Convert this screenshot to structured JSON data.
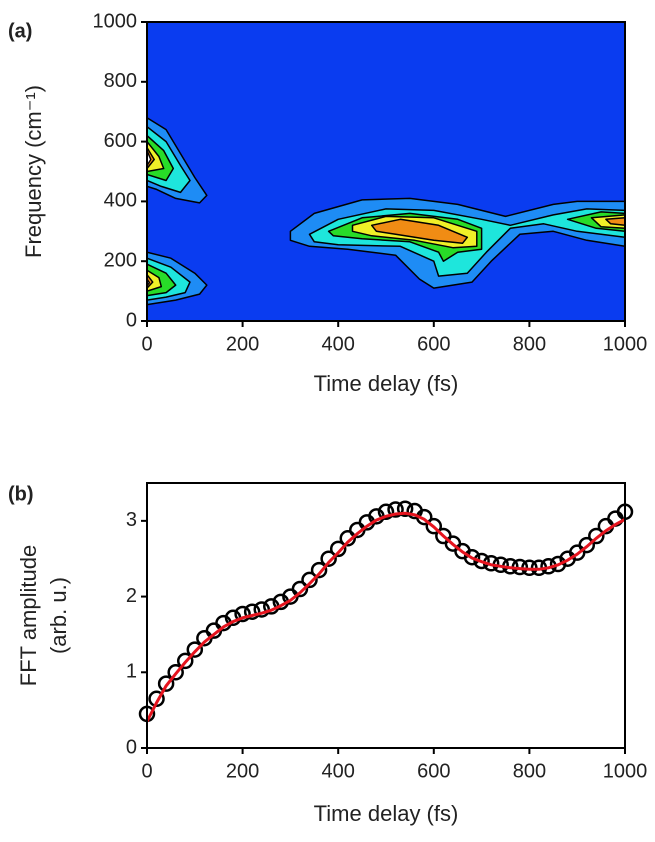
{
  "chart_data": [
    {
      "type": "contour",
      "panel_label": "(a)",
      "xlabel": "Time delay (fs)",
      "ylabel": "Frequency (cm⁻¹)",
      "xlim": [
        0,
        1000
      ],
      "ylim": [
        0,
        1000
      ],
      "xticks": [
        0,
        200,
        400,
        600,
        800,
        1000
      ],
      "yticks": [
        0,
        200,
        400,
        600,
        800,
        1000
      ],
      "background": "#0a3cf0",
      "levels": [
        {
          "color": "#1e8cf5",
          "regions": [
            {
              "x": [
                0,
                40,
                70,
                100,
                125,
                110,
                60,
                20,
                0
              ],
              "y": [
                680,
                640,
                560,
                480,
                420,
                395,
                410,
                440,
                450
              ]
            },
            {
              "x": [
                0,
                50,
                100,
                125,
                110,
                60,
                0
              ],
              "y": [
                230,
                210,
                160,
                120,
                90,
                70,
                55
              ]
            },
            {
              "x": [
                300,
                350,
                450,
                550,
                650,
                750,
                850,
                900,
                1000,
                1000,
                920,
                850,
                780,
                720,
                680,
                600,
                570,
                520,
                420,
                340,
                300
              ],
              "y": [
                300,
                360,
                405,
                410,
                390,
                350,
                390,
                400,
                400,
                250,
                270,
                300,
                290,
                200,
                130,
                110,
                140,
                220,
                240,
                250,
                270
              ]
            }
          ]
        },
        {
          "color": "#1ee6dc",
          "regions": [
            {
              "x": [
                0,
                40,
                70,
                90,
                70,
                30,
                0
              ],
              "y": [
                650,
                600,
                520,
                470,
                430,
                450,
                470
              ]
            },
            {
              "x": [
                0,
                50,
                90,
                80,
                40,
                0
              ],
              "y": [
                210,
                180,
                130,
                95,
                80,
                70
              ]
            },
            {
              "x": [
                340,
                400,
                500,
                600,
                700,
                760,
                850,
                920,
                1000,
                1000,
                900,
                830,
                760,
                710,
                670,
                610,
                600,
                530,
                400,
                350
              ],
              "y": [
                290,
                340,
                375,
                370,
                340,
                320,
                355,
                375,
                370,
                280,
                300,
                325,
                310,
                230,
                160,
                150,
                200,
                250,
                255,
                265
              ]
            }
          ]
        },
        {
          "color": "#28dc28",
          "regions": [
            {
              "x": [
                0,
                35,
                55,
                40,
                0
              ],
              "y": [
                620,
                570,
                510,
                470,
                490
              ]
            },
            {
              "x": [
                0,
                40,
                60,
                40,
                0
              ],
              "y": [
                190,
                160,
                120,
                95,
                85
              ]
            },
            {
              "x": [
                380,
                450,
                550,
                650,
                700,
                700,
                650,
                620,
                610,
                550,
                450,
                390
              ],
              "y": [
                300,
                345,
                360,
                340,
                310,
                240,
                230,
                200,
                230,
                265,
                275,
                285
              ]
            },
            {
              "x": [
                880,
                950,
                1000,
                1000,
                940
              ],
              "y": [
                340,
                365,
                360,
                300,
                310
              ]
            }
          ]
        },
        {
          "color": "#f0f028",
          "regions": [
            {
              "x": [
                0,
                25,
                35,
                0
              ],
              "y": [
                600,
                550,
                510,
                500
              ]
            },
            {
              "x": [
                0,
                25,
                30,
                0
              ],
              "y": [
                170,
                145,
                115,
                100
              ]
            },
            {
              "x": [
                430,
                500,
                600,
                690,
                690,
                640,
                560,
                470,
                430
              ],
              "y": [
                320,
                350,
                345,
                300,
                250,
                245,
                270,
                285,
                300
              ]
            },
            {
              "x": [
                930,
                1000,
                1000,
                950
              ],
              "y": [
                345,
                355,
                310,
                315
              ]
            }
          ]
        },
        {
          "color": "#f08c14",
          "regions": [
            {
              "x": [
                0,
                15,
                0
              ],
              "y": [
                580,
                540,
                510
              ]
            },
            {
              "x": [
                0,
                12,
                0
              ],
              "y": [
                155,
                130,
                110
              ]
            },
            {
              "x": [
                470,
                530,
                610,
                670,
                660,
                600,
                520,
                480
              ],
              "y": [
                320,
                340,
                320,
                280,
                260,
                270,
                290,
                300
              ]
            },
            {
              "x": [
                960,
                1000,
                1000,
                970
              ],
              "y": [
                340,
                345,
                320,
                325
              ]
            }
          ]
        },
        {
          "color": "#ffffff",
          "regions": [
            {
              "x": [
                0,
                8,
                0
              ],
              "y": [
                570,
                540,
                520
              ]
            },
            {
              "x": [
                0,
                5,
                0
              ],
              "y": [
                140,
                128,
                118
              ]
            }
          ]
        }
      ]
    },
    {
      "type": "line",
      "panel_label": "(b)",
      "xlabel": "Time delay (fs)",
      "ylabel": [
        "FFT amplitude",
        "(arb. u.)"
      ],
      "xlim": [
        0,
        1000
      ],
      "ylim": [
        0,
        3.5
      ],
      "xticks": [
        0,
        200,
        400,
        600,
        800,
        1000
      ],
      "yticks": [
        0,
        1,
        2,
        3
      ],
      "x": [
        0,
        20,
        40,
        60,
        80,
        100,
        120,
        140,
        160,
        180,
        200,
        220,
        240,
        260,
        280,
        300,
        320,
        340,
        360,
        380,
        400,
        420,
        440,
        460,
        480,
        500,
        520,
        540,
        560,
        580,
        600,
        620,
        640,
        660,
        680,
        700,
        720,
        740,
        760,
        780,
        800,
        820,
        840,
        860,
        880,
        900,
        920,
        940,
        960,
        980,
        1000
      ],
      "series": [
        {
          "color": "#000000",
          "marker": "open-circle",
          "values": [
            0.45,
            0.65,
            0.85,
            1.0,
            1.15,
            1.3,
            1.45,
            1.55,
            1.65,
            1.72,
            1.77,
            1.8,
            1.83,
            1.87,
            1.93,
            2.0,
            2.1,
            2.22,
            2.35,
            2.5,
            2.63,
            2.77,
            2.88,
            2.98,
            3.06,
            3.12,
            3.15,
            3.16,
            3.13,
            3.05,
            2.93,
            2.8,
            2.7,
            2.6,
            2.52,
            2.47,
            2.44,
            2.42,
            2.4,
            2.39,
            2.38,
            2.38,
            2.4,
            2.43,
            2.5,
            2.58,
            2.68,
            2.8,
            2.93,
            3.03,
            3.12
          ]
        },
        {
          "color": "#e6141e",
          "marker": "line",
          "values": [
            0.35,
            0.6,
            0.82,
            0.98,
            1.13,
            1.27,
            1.4,
            1.5,
            1.6,
            1.67,
            1.72,
            1.75,
            1.78,
            1.82,
            1.88,
            1.95,
            2.05,
            2.17,
            2.3,
            2.45,
            2.58,
            2.72,
            2.83,
            2.93,
            3.01,
            3.06,
            3.09,
            3.1,
            3.08,
            3.02,
            2.92,
            2.8,
            2.69,
            2.59,
            2.51,
            2.46,
            2.42,
            2.4,
            2.38,
            2.37,
            2.36,
            2.36,
            2.38,
            2.42,
            2.48,
            2.56,
            2.66,
            2.77,
            2.87,
            2.95,
            3.02
          ]
        }
      ]
    }
  ]
}
